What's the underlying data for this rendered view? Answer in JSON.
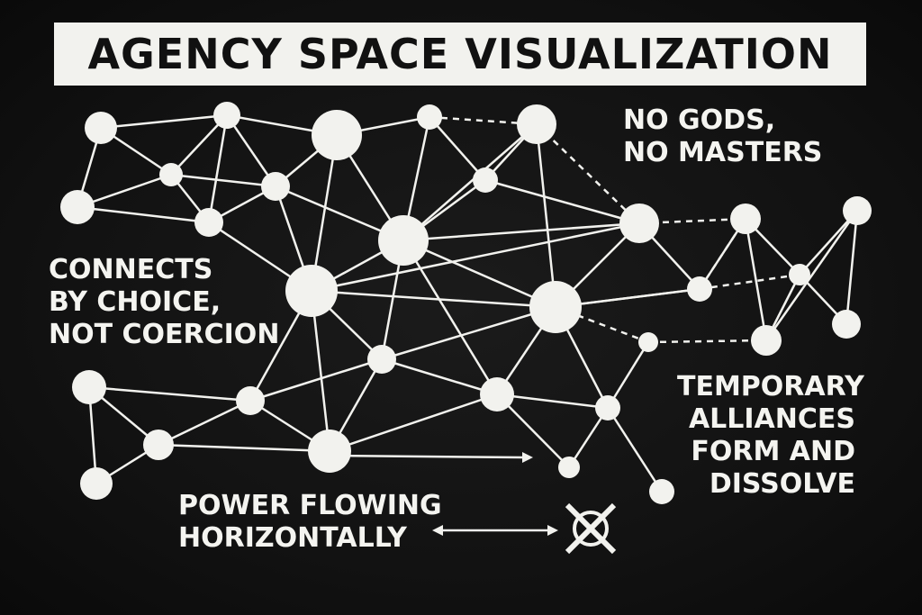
{
  "title": "AGENCY SPACE VISUALIZATION",
  "annotations": {
    "no_gods": "NO GODS,\nNO MASTERS",
    "connects": "CONNECTS\nBY CHOICE,\nNOT COERCION",
    "temporary": "TEMPORARY\nALLIANCES\nFORM AND\nDISSOLVE",
    "power": "POWER FLOWING\nHORIZONTALLY"
  },
  "colors": {
    "background": "#121212",
    "node": "#f2f2ee",
    "edge": "#f2f2ee",
    "banner": "#f2f2ee",
    "banner_text": "#111111"
  },
  "icons": [
    "double-arrow-icon",
    "crossed-circle-icon"
  ]
}
